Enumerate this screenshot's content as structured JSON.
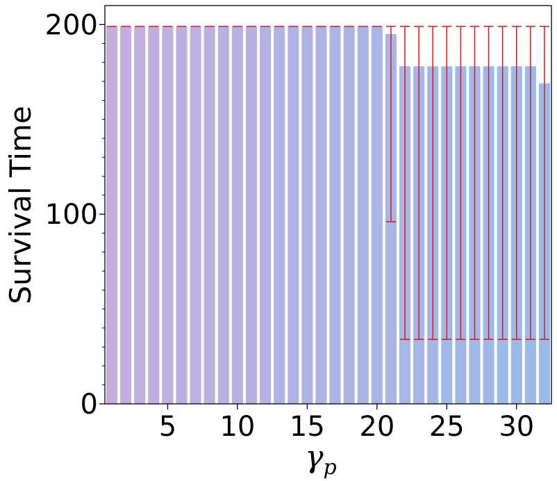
{
  "chart_data": {
    "type": "bar",
    "xlabel_symbol": "γ",
    "xlabel_subscript": "p",
    "ylabel": "Survival Time",
    "x": [
      1,
      2,
      3,
      4,
      5,
      6,
      7,
      8,
      9,
      10,
      11,
      12,
      13,
      14,
      15,
      16,
      17,
      18,
      19,
      20,
      21,
      22,
      23,
      24,
      25,
      26,
      27,
      28,
      29,
      30,
      31,
      32
    ],
    "values": [
      199,
      199,
      199,
      199,
      199,
      199,
      199,
      199,
      199,
      199,
      199,
      199,
      199,
      199,
      199,
      199,
      199,
      199,
      199,
      199,
      195,
      178,
      178,
      178,
      178,
      178,
      178,
      178,
      178,
      178,
      178,
      169
    ],
    "error_lower": [
      null,
      null,
      null,
      null,
      null,
      null,
      null,
      null,
      null,
      null,
      null,
      null,
      null,
      null,
      null,
      null,
      null,
      null,
      null,
      null,
      96,
      34,
      34,
      34,
      34,
      34,
      34,
      34,
      34,
      34,
      34,
      34
    ],
    "error_upper": [
      199,
      199,
      199,
      199,
      199,
      199,
      199,
      199,
      199,
      199,
      199,
      199,
      199,
      199,
      199,
      199,
      199,
      199,
      199,
      199,
      199,
      199,
      199,
      199,
      199,
      199,
      199,
      199,
      199,
      199,
      199,
      199
    ],
    "xlim": [
      0.5,
      32.5
    ],
    "ylim": [
      0,
      210
    ],
    "x_ticks": [
      5,
      10,
      15,
      20,
      25,
      30
    ],
    "y_ticks": [
      0,
      100,
      200
    ],
    "y_minor_ticks": [
      10,
      20,
      30,
      40,
      50,
      60,
      70,
      80,
      90,
      110,
      120,
      130,
      140,
      150,
      160,
      170,
      180,
      190
    ],
    "bar_color_start": "#c3aee0",
    "bar_color_end": "#99bbe9",
    "error_color": "#e0141e",
    "grid": false
  }
}
